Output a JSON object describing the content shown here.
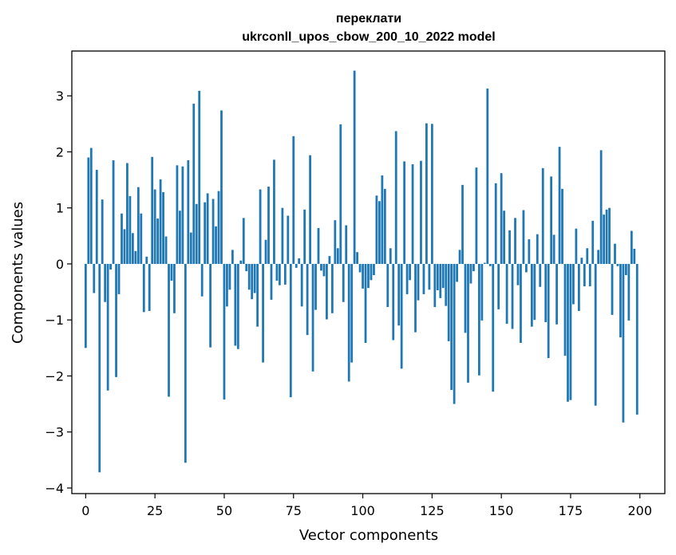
{
  "chart_data": {
    "type": "bar",
    "title": "переклати",
    "subtitle": "ukrconll_upos_cbow_200_10_2022 model",
    "xlabel": "Vector components",
    "ylabel": "Components values",
    "xlim": [
      -5,
      209
    ],
    "ylim": [
      -4.1,
      3.8
    ],
    "xticks": [
      0,
      25,
      50,
      75,
      100,
      125,
      150,
      175,
      200
    ],
    "yticks": [
      -4,
      -3,
      -2,
      -1,
      0,
      1,
      2,
      3
    ],
    "ytick_labels": [
      "−4",
      "−3",
      "−2",
      "−1",
      "0",
      "1",
      "2",
      "3"
    ],
    "grid": false,
    "bar_color": "#1f77b4",
    "x": [
      0,
      1,
      2,
      3,
      4,
      5,
      6,
      7,
      8,
      9,
      10,
      11,
      12,
      13,
      14,
      15,
      16,
      17,
      18,
      19,
      20,
      21,
      22,
      23,
      24,
      25,
      26,
      27,
      28,
      29,
      30,
      31,
      32,
      33,
      34,
      35,
      36,
      37,
      38,
      39,
      40,
      41,
      42,
      43,
      44,
      45,
      46,
      47,
      48,
      49,
      50,
      51,
      52,
      53,
      54,
      55,
      56,
      57,
      58,
      59,
      60,
      61,
      62,
      63,
      64,
      65,
      66,
      67,
      68,
      69,
      70,
      71,
      72,
      73,
      74,
      75,
      76,
      77,
      78,
      79,
      80,
      81,
      82,
      83,
      84,
      85,
      86,
      87,
      88,
      89,
      90,
      91,
      92,
      93,
      94,
      95,
      96,
      97,
      98,
      99,
      100,
      101,
      102,
      103,
      104,
      105,
      106,
      107,
      108,
      109,
      110,
      111,
      112,
      113,
      114,
      115,
      116,
      117,
      118,
      119,
      120,
      121,
      122,
      123,
      124,
      125,
      126,
      127,
      128,
      129,
      130,
      131,
      132,
      133,
      134,
      135,
      136,
      137,
      138,
      139,
      140,
      141,
      142,
      143,
      144,
      145,
      146,
      147,
      148,
      149,
      150,
      151,
      152,
      153,
      154,
      155,
      156,
      157,
      158,
      159,
      160,
      161,
      162,
      163,
      164,
      165,
      166,
      167,
      168,
      169,
      170,
      171,
      172,
      173,
      174,
      175,
      176,
      177,
      178,
      179,
      180,
      181,
      182,
      183,
      184,
      185,
      186,
      187,
      188,
      189,
      190,
      191,
      192,
      193,
      194,
      195,
      196,
      197,
      198,
      199
    ],
    "values": [
      -1.5,
      1.9,
      2.07,
      -0.52,
      1.68,
      -3.72,
      1.15,
      -0.68,
      -2.26,
      -0.1,
      1.85,
      -2.02,
      -0.54,
      0.9,
      0.62,
      1.8,
      1.21,
      0.55,
      0.23,
      1.37,
      0.9,
      -0.86,
      0.13,
      -0.84,
      1.91,
      1.33,
      0.81,
      1.51,
      1.28,
      0.49,
      -2.37,
      -0.3,
      -0.88,
      1.76,
      0.95,
      1.74,
      -3.55,
      1.85,
      0.56,
      2.86,
      1.07,
      3.09,
      -0.58,
      1.1,
      1.26,
      -1.49,
      1.16,
      0.67,
      1.3,
      2.74,
      -2.42,
      -0.76,
      -0.46,
      0.25,
      -1.46,
      -1.52,
      0.06,
      0.82,
      -0.13,
      -0.46,
      -0.63,
      -0.52,
      -1.12,
      1.33,
      -1.76,
      0.43,
      1.38,
      -0.64,
      1.86,
      -0.3,
      -0.38,
      1.0,
      -0.37,
      0.86,
      -2.38,
      2.28,
      -0.07,
      0.1,
      -0.76,
      0.97,
      -1.27,
      1.94,
      -1.92,
      -0.82,
      0.64,
      -0.12,
      -0.22,
      -0.99,
      0.14,
      -0.88,
      0.78,
      0.28,
      2.49,
      -0.68,
      0.69,
      -2.1,
      -1.76,
      3.45,
      0.21,
      -0.15,
      -0.44,
      -1.41,
      -0.43,
      -0.29,
      -0.2,
      1.22,
      1.12,
      1.58,
      1.34,
      -0.77,
      0.28,
      -1.36,
      2.37,
      -1.1,
      -1.87,
      1.83,
      -0.54,
      -0.29,
      1.78,
      -1.22,
      -0.65,
      1.84,
      -0.54,
      2.51,
      -0.46,
      2.5,
      -0.77,
      -0.47,
      -0.61,
      -0.43,
      -0.75,
      -1.38,
      -2.25,
      -2.5,
      -0.32,
      0.25,
      1.41,
      -1.23,
      -2.12,
      -0.35,
      -0.13,
      1.72,
      -1.99,
      -1.01,
      0.02,
      3.13,
      -0.04,
      -2.28,
      1.44,
      -0.81,
      1.62,
      0.95,
      -1.07,
      0.6,
      -1.16,
      0.82,
      -0.38,
      -1.41,
      0.96,
      -0.15,
      0.44,
      -1.12,
      -1.0,
      0.53,
      -0.41,
      1.71,
      -1.04,
      -1.68,
      1.56,
      0.52,
      -1.08,
      2.09,
      1.34,
      -1.64,
      -2.46,
      -2.43,
      -0.72,
      0.63,
      -0.84,
      0.11,
      -0.4,
      0.28,
      -0.4,
      0.77,
      -2.53,
      0.25,
      2.03,
      0.88,
      0.97,
      1.0,
      -0.91,
      0.36,
      -0.04,
      -1.31,
      -2.83,
      -0.2,
      -1.01,
      0.59,
      0.27,
      -2.69
    ]
  }
}
